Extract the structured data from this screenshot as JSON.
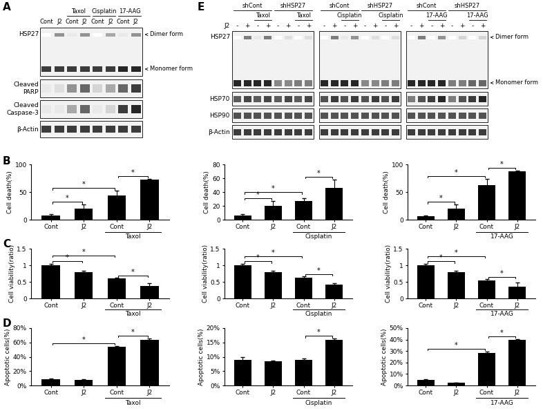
{
  "panel_labels": [
    "A",
    "B",
    "C",
    "D",
    "E"
  ],
  "panel_A": {
    "lane_labels": [
      "Cont",
      "J2",
      "Cont",
      "J2",
      "Cont",
      "J2",
      "Cont",
      "J2"
    ],
    "groups": [
      {
        "label": "Taxol",
        "lanes": [
          2,
          3
        ]
      },
      {
        "label": "Cisplatin",
        "lanes": [
          4,
          5
        ]
      },
      {
        "label": "17-AAG",
        "lanes": [
          6,
          7
        ]
      }
    ],
    "hsp27": {
      "label": "HSP27",
      "dimer": [
        0,
        0.5,
        0.1,
        0.5,
        0,
        0.4,
        0.1,
        0.5
      ],
      "monomer": [
        0.9,
        0.9,
        0.9,
        0.9,
        0.9,
        0.9,
        1,
        1
      ]
    },
    "arrows": [
      "Dimer form",
      "Monomer form"
    ],
    "rows": [
      {
        "label": "Cleaved\nPARP",
        "intensity": [
          0.1,
          0.15,
          0.5,
          0.7,
          0.2,
          0.4,
          0.7,
          0.9
        ]
      },
      {
        "label": "Cleaved\nCaspase-3",
        "intensity": [
          0.1,
          0.1,
          0.4,
          0.7,
          0.1,
          0.2,
          0.9,
          1.0
        ]
      },
      {
        "label": "β-Actin",
        "intensity": [
          0.9,
          0.9,
          0.9,
          0.9,
          0.9,
          0.9,
          0.9,
          0.9
        ]
      }
    ]
  },
  "panel_E": {
    "row_labels": [
      "HSP27",
      "HSP70",
      "HSP90",
      "β-Actin"
    ],
    "sign_label": "J2",
    "arrows": [
      "Dimer form",
      "Monomer form"
    ],
    "blots": [
      {
        "groups": [
          {
            "label": "shCont",
            "lanes": [
              0,
              1,
              2,
              3
            ]
          },
          {
            "label": "shHSP27",
            "lanes": [
              4,
              5,
              6,
              7
            ]
          }
        ],
        "treatments": [
          {
            "label": "Taxol",
            "lanes": [
              2,
              3
            ]
          },
          {
            "label": "Taxol",
            "lanes": [
              6,
              7
            ]
          }
        ],
        "signs": [
          "-",
          "+",
          "-",
          "+",
          "-",
          "+",
          "-",
          "+"
        ],
        "hsp27_dimer": [
          0,
          0.6,
          0.1,
          0.6,
          0,
          0.15,
          0,
          0.15
        ],
        "hsp27_monomer": [
          1,
          1,
          1,
          1,
          0.55,
          0.55,
          0.6,
          0.6
        ],
        "other_rows": [
          [
            0.75,
            0.85,
            0.75,
            0.85,
            0.75,
            0.85,
            0.75,
            0.85
          ],
          [
            0.8,
            0.8,
            0.8,
            0.8,
            0.8,
            0.8,
            0.8,
            0.8
          ],
          [
            0.9,
            0.9,
            0.9,
            0.9,
            0.9,
            0.9,
            0.9,
            0.9
          ]
        ]
      },
      {
        "groups": [
          {
            "label": "shCont",
            "lanes": [
              0,
              1,
              2,
              3
            ]
          },
          {
            "label": "shHSP27",
            "lanes": [
              4,
              5,
              6,
              7
            ]
          }
        ],
        "treatments": [
          {
            "label": "Cisplatin",
            "lanes": [
              2,
              3
            ]
          },
          {
            "label": "Cisplatin",
            "lanes": [
              6,
              7
            ]
          }
        ],
        "signs": [
          "-",
          "+",
          "-",
          "+",
          "-",
          "+",
          "-",
          "+"
        ],
        "hsp27_dimer": [
          0,
          0.6,
          0.1,
          0.5,
          0,
          0.15,
          0,
          0.15
        ],
        "hsp27_monomer": [
          1,
          1,
          1,
          1,
          0.55,
          0.55,
          0.6,
          0.6
        ],
        "other_rows": [
          [
            0.8,
            0.9,
            0.8,
            0.9,
            0.8,
            0.9,
            0.8,
            0.9
          ],
          [
            0.8,
            0.8,
            0.8,
            0.8,
            0.8,
            0.8,
            0.8,
            0.8
          ],
          [
            0.9,
            0.9,
            0.9,
            0.9,
            0.9,
            0.9,
            0.9,
            0.9
          ]
        ]
      },
      {
        "groups": [
          {
            "label": "shCont",
            "lanes": [
              0,
              1,
              2,
              3
            ]
          },
          {
            "label": "shHSP27",
            "lanes": [
              4,
              5,
              6,
              7
            ]
          }
        ],
        "treatments": [
          {
            "label": "17-AAG",
            "lanes": [
              2,
              3
            ]
          },
          {
            "label": "17-AAG",
            "lanes": [
              6,
              7
            ]
          }
        ],
        "signs": [
          "-",
          "+",
          "-",
          "+",
          "-",
          "+",
          "-",
          "+"
        ],
        "hsp27_dimer": [
          0,
          0.6,
          0,
          0.5,
          0,
          0.2,
          0,
          0.2
        ],
        "hsp27_monomer": [
          1,
          1,
          1,
          1,
          0.6,
          0.6,
          0.7,
          0.7
        ],
        "other_rows": [
          [
            0.6,
            0.8,
            0.9,
            1,
            0.6,
            0.8,
            0.9,
            1
          ],
          [
            0.8,
            0.8,
            0.8,
            0.8,
            0.8,
            0.8,
            0.8,
            0.8
          ],
          [
            0.9,
            0.9,
            0.9,
            0.9,
            0.9,
            0.9,
            0.9,
            0.9
          ]
        ]
      }
    ]
  },
  "chart_data": [
    {
      "type": "bar",
      "y_label": "Cell death(%)",
      "categories": [
        "Cont",
        "J2",
        "Cont",
        "J2"
      ],
      "values": [
        7,
        20,
        44,
        72
      ],
      "errors": [
        3,
        7,
        8,
        2
      ],
      "color": "#000000",
      "group": {
        "label": "Taxol",
        "members": [
          2,
          3
        ]
      },
      "significance": [
        {
          "pair": [
            0,
            1
          ],
          "label": "*"
        },
        {
          "pair": [
            0,
            2
          ],
          "label": "*"
        },
        {
          "pair": [
            2,
            3
          ],
          "label": "*"
        }
      ],
      "ylim": [
        0,
        100
      ],
      "yticks": [
        0,
        50,
        100
      ]
    },
    {
      "type": "bar",
      "y_label": "Cell death(%)",
      "categories": [
        "Cont",
        "J2",
        "Cont",
        "J2"
      ],
      "values": [
        6,
        20,
        27,
        46
      ],
      "errors": [
        2,
        7,
        4,
        12
      ],
      "color": "#000000",
      "group": {
        "label": "Cisplatin",
        "members": [
          2,
          3
        ]
      },
      "significance": [
        {
          "pair": [
            0,
            1
          ],
          "label": "*"
        },
        {
          "pair": [
            0,
            2
          ],
          "label": "*"
        },
        {
          "pair": [
            2,
            3
          ],
          "label": "*"
        }
      ],
      "ylim": [
        0,
        80
      ],
      "yticks": [
        0,
        20,
        40,
        60,
        80
      ]
    },
    {
      "type": "bar",
      "y_label": "Cell death(%)",
      "categories": [
        "Cont",
        "J2",
        "Cont",
        "J2"
      ],
      "values": [
        6,
        20,
        62,
        87
      ],
      "errors": [
        2,
        7,
        12,
        2
      ],
      "color": "#000000",
      "group": {
        "label": "17-AAG",
        "members": [
          2,
          3
        ]
      },
      "significance": [
        {
          "pair": [
            0,
            1
          ],
          "label": "*"
        },
        {
          "pair": [
            0,
            2
          ],
          "label": "*"
        },
        {
          "pair": [
            2,
            3
          ],
          "label": "*"
        }
      ],
      "ylim": [
        0,
        100
      ],
      "yticks": [
        0,
        50,
        100
      ]
    },
    {
      "type": "bar",
      "y_label": "Cell viability(ratio)",
      "categories": [
        "Cont",
        "J2",
        "Cont",
        "J2"
      ],
      "values": [
        1.0,
        0.8,
        0.6,
        0.38
      ],
      "errors": [
        0.05,
        0.03,
        0.02,
        0.07
      ],
      "color": "#000000",
      "group": {
        "label": "Taxol",
        "members": [
          2,
          3
        ]
      },
      "significance": [
        {
          "pair": [
            0,
            1
          ],
          "label": "*"
        },
        {
          "pair": [
            0,
            2
          ],
          "label": "*"
        },
        {
          "pair": [
            2,
            3
          ],
          "label": "*"
        }
      ],
      "ylim": [
        0,
        1.5
      ],
      "yticks": [
        0,
        0.5,
        1,
        1.5
      ]
    },
    {
      "type": "bar",
      "y_label": "Cell viability(ratio)",
      "categories": [
        "Cont",
        "J2",
        "Cont",
        "J2"
      ],
      "values": [
        1.0,
        0.8,
        0.62,
        0.42
      ],
      "errors": [
        0.04,
        0.03,
        0.04,
        0.04
      ],
      "color": "#000000",
      "group": {
        "label": "Cisplatin",
        "members": [
          2,
          3
        ]
      },
      "significance": [
        {
          "pair": [
            0,
            1
          ],
          "label": "*"
        },
        {
          "pair": [
            0,
            2
          ],
          "label": "*"
        },
        {
          "pair": [
            2,
            3
          ],
          "label": "*"
        }
      ],
      "ylim": [
        0,
        1.5
      ],
      "yticks": [
        0,
        0.5,
        1,
        1.5
      ]
    },
    {
      "type": "bar",
      "y_label": "Cell viability(ratio)",
      "categories": [
        "Cont",
        "J2",
        "Cont",
        "J2"
      ],
      "values": [
        1.0,
        0.8,
        0.54,
        0.36
      ],
      "errors": [
        0.04,
        0.03,
        0.04,
        0.12
      ],
      "color": "#000000",
      "group": {
        "label": "17-AAG",
        "members": [
          2,
          3
        ]
      },
      "significance": [
        {
          "pair": [
            0,
            1
          ],
          "label": "*"
        },
        {
          "pair": [
            0,
            2
          ],
          "label": "*"
        },
        {
          "pair": [
            2,
            3
          ],
          "label": "*"
        }
      ],
      "ylim": [
        0,
        1.5
      ],
      "yticks": [
        0,
        0.5,
        1,
        1.5
      ]
    },
    {
      "type": "bar",
      "y_label": "Apoptotic cells(%)",
      "categories": [
        "Cont",
        "J2",
        "Cont",
        "J2"
      ],
      "values": [
        9,
        8,
        54,
        64
      ],
      "errors": [
        0.5,
        0.3,
        1,
        1.5
      ],
      "color": "#000000",
      "group": {
        "label": "Taxol",
        "members": [
          2,
          3
        ]
      },
      "significance": [
        {
          "pair": [
            0,
            2
          ],
          "label": "*"
        },
        {
          "pair": [
            2,
            3
          ],
          "label": "*"
        }
      ],
      "ylim": [
        0,
        80
      ],
      "yticks": [
        {
          "value": 0,
          "label": "0%"
        },
        {
          "value": 20,
          "label": "20%"
        },
        {
          "value": 40,
          "label": "40%"
        },
        {
          "value": 60,
          "label": "60%"
        },
        {
          "value": 80,
          "label": "80%"
        }
      ]
    },
    {
      "type": "bar",
      "y_label": "Apoptotic cells(%)",
      "categories": [
        "Cont",
        "J2",
        "Cont",
        "J2"
      ],
      "values": [
        9,
        8.5,
        9,
        15.8
      ],
      "errors": [
        1,
        0.2,
        0.4,
        0.5
      ],
      "color": "#000000",
      "group": {
        "label": "Cisplatin",
        "members": [
          2,
          3
        ]
      },
      "significance": [
        {
          "pair": [
            2,
            3
          ],
          "label": "*"
        }
      ],
      "ylim": [
        0,
        20
      ],
      "yticks": [
        {
          "value": 0,
          "label": "0%"
        },
        {
          "value": 5,
          "label": "5%"
        },
        {
          "value": 10,
          "label": "10%"
        },
        {
          "value": 15,
          "label": "15%"
        },
        {
          "value": 20,
          "label": "20%"
        }
      ]
    },
    {
      "type": "bar",
      "y_label": "Apoptotic cells(%)",
      "categories": [
        "Cont",
        "J2",
        "Cont",
        "J2"
      ],
      "values": [
        5,
        2.5,
        28.5,
        39.5
      ],
      "errors": [
        0.7,
        0.2,
        1,
        0.8
      ],
      "color": "#000000",
      "group": {
        "label": "17-AAG",
        "members": [
          2,
          3
        ]
      },
      "significance": [
        {
          "pair": [
            0,
            2
          ],
          "label": "*"
        },
        {
          "pair": [
            2,
            3
          ],
          "label": "*"
        }
      ],
      "ylim": [
        0,
        50
      ],
      "yticks": [
        {
          "value": 0,
          "label": "0%"
        },
        {
          "value": 10,
          "label": "10%"
        },
        {
          "value": 20,
          "label": "20%"
        },
        {
          "value": 30,
          "label": "30%"
        },
        {
          "value": 40,
          "label": "40%"
        },
        {
          "value": 50,
          "label": "50%"
        }
      ]
    }
  ]
}
